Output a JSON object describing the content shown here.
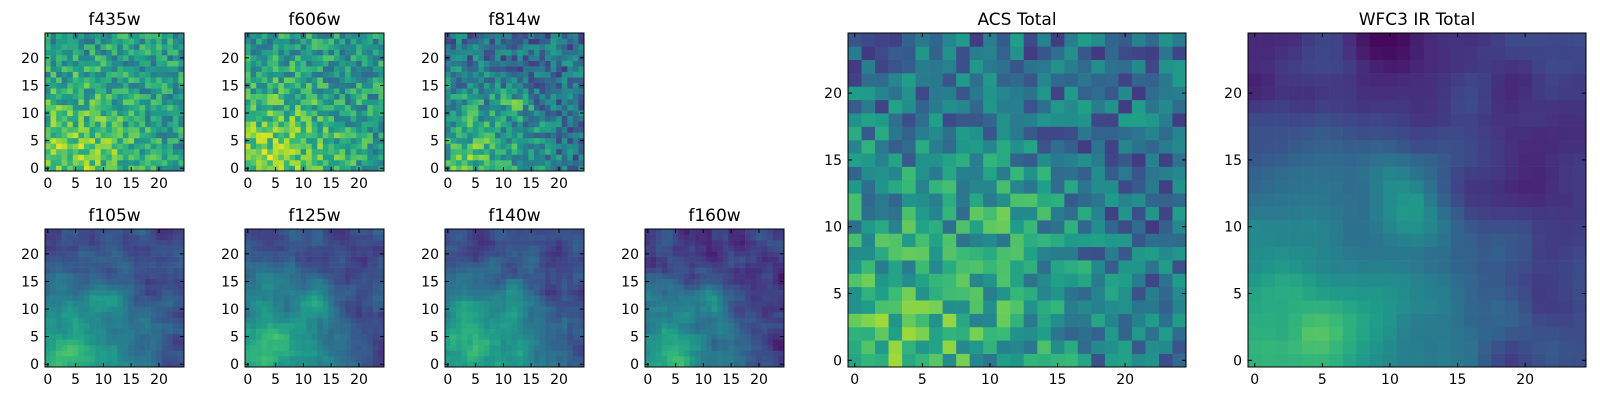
{
  "chart_data": [
    {
      "type": "heatmap",
      "title": "f435w",
      "xticks": [
        0,
        5,
        10,
        15,
        20
      ],
      "yticks": [
        0,
        5,
        10,
        15,
        20
      ],
      "grid_size": 25,
      "extent": [
        -0.5,
        24.5
      ],
      "colormap": "viridis",
      "style": "bright",
      "bright_region": "lower-left",
      "seed": 1
    },
    {
      "type": "heatmap",
      "title": "f606w",
      "xticks": [
        0,
        5,
        10,
        15,
        20
      ],
      "yticks": [
        0,
        5,
        10,
        15,
        20
      ],
      "grid_size": 25,
      "extent": [
        -0.5,
        24.5
      ],
      "colormap": "viridis",
      "style": "bright",
      "bright_region": "lower-left",
      "seed": 2
    },
    {
      "type": "heatmap",
      "title": "f814w",
      "xticks": [
        0,
        5,
        10,
        15,
        20
      ],
      "yticks": [
        0,
        5,
        10,
        15,
        20
      ],
      "grid_size": 25,
      "extent": [
        -0.5,
        24.5
      ],
      "colormap": "viridis",
      "style": "mid",
      "bright_region": "lower-left",
      "seed": 3
    },
    {
      "type": "heatmap",
      "title": "f105w",
      "xticks": [
        0,
        5,
        10,
        15,
        20
      ],
      "yticks": [
        0,
        5,
        10,
        15,
        20
      ],
      "grid_size": 25,
      "extent": [
        -0.5,
        24.5
      ],
      "colormap": "viridis",
      "style": "smooth",
      "bright_region": "lower-left",
      "seed": 4
    },
    {
      "type": "heatmap",
      "title": "f125w",
      "xticks": [
        0,
        5,
        10,
        15,
        20
      ],
      "yticks": [
        0,
        5,
        10,
        15,
        20
      ],
      "grid_size": 25,
      "extent": [
        -0.5,
        24.5
      ],
      "colormap": "viridis",
      "style": "smooth",
      "bright_region": "lower-left",
      "seed": 5
    },
    {
      "type": "heatmap",
      "title": "f140w",
      "xticks": [
        0,
        5,
        10,
        15,
        20
      ],
      "yticks": [
        0,
        5,
        10,
        15,
        20
      ],
      "grid_size": 25,
      "extent": [
        -0.5,
        24.5
      ],
      "colormap": "viridis",
      "style": "smooth",
      "bright_region": "lower-left",
      "seed": 6
    },
    {
      "type": "heatmap",
      "title": "f160w",
      "xticks": [
        0,
        5,
        10,
        15,
        20
      ],
      "yticks": [
        0,
        5,
        10,
        15,
        20
      ],
      "grid_size": 25,
      "extent": [
        -0.5,
        24.5
      ],
      "colormap": "viridis",
      "style": "dark",
      "bright_region": "lower-left",
      "seed": 7
    },
    {
      "type": "heatmap",
      "title": "ACS Total",
      "xticks": [
        0,
        5,
        10,
        15,
        20
      ],
      "yticks": [
        0,
        5,
        10,
        15,
        20
      ],
      "grid_size": 25,
      "extent": [
        -0.5,
        24.5
      ],
      "colormap": "viridis",
      "style": "mid",
      "bright_region": "lower-left",
      "seed": 8
    },
    {
      "type": "heatmap",
      "title": "WFC3 IR Total",
      "xticks": [
        0,
        5,
        10,
        15,
        20
      ],
      "yticks": [
        0,
        5,
        10,
        15,
        20
      ],
      "grid_size": 25,
      "extent": [
        -0.5,
        24.5
      ],
      "colormap": "viridis",
      "style": "smoothdark",
      "bright_region": "lower-left",
      "seed": 9
    }
  ]
}
